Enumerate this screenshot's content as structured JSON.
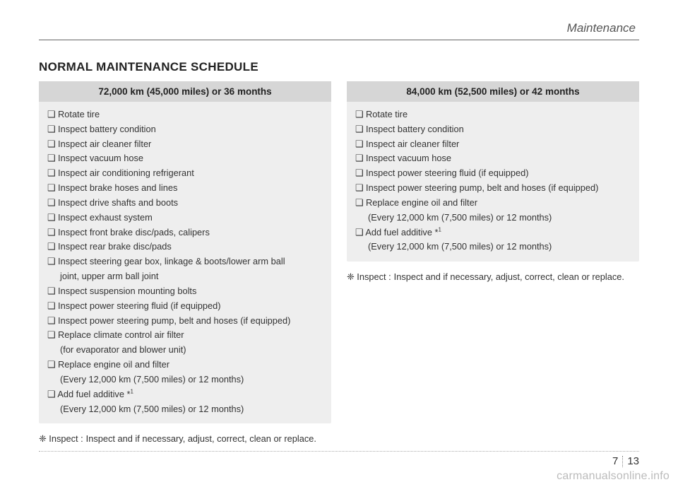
{
  "header": {
    "section": "Maintenance"
  },
  "title": "NORMAL MAINTENANCE SCHEDULE",
  "left": {
    "header": "72,000 km (45,000 miles) or 36 months",
    "items": [
      "❑ Rotate tire",
      "❑ Inspect battery condition",
      "❑ Inspect air cleaner filter",
      "❑ Inspect vacuum hose",
      "❑ Inspect air conditioning refrigerant",
      "❑ Inspect brake hoses and lines",
      "❑ Inspect drive shafts and boots",
      "❑ Inspect exhaust system",
      "❑ Inspect front brake disc/pads, calipers",
      "❑ Inspect rear brake disc/pads",
      "❑ Inspect steering gear box, linkage & boots/lower arm ball",
      "    joint, upper arm ball joint",
      "❑ Inspect suspension mounting bolts",
      "❑ Inspect power steering fluid (if equipped)",
      "❑ Inspect power steering pump, belt and hoses (if equipped)",
      "❑ Replace climate control air filter",
      "    (for evaporator and blower unit)",
      "❑ Replace engine oil and filter",
      "    (Every 12,000 km (7,500 miles) or 12 months)",
      "❑ Add fuel additive *",
      "    (Every 12,000 km (7,500 miles) or 12 months)"
    ],
    "note_label": "❈ Inspect :",
    "note_text": "Inspect and if necessary, adjust, correct, clean or replace."
  },
  "right": {
    "header": "84,000 km (52,500 miles) or 42 months",
    "items": [
      "❑ Rotate tire",
      "❑ Inspect battery condition",
      "❑ Inspect air cleaner filter",
      "❑ Inspect vacuum hose",
      "❑ Inspect power steering fluid (if equipped)",
      "❑ Inspect power steering pump, belt and hoses (if equipped)",
      "❑ Replace engine oil and filter",
      "    (Every 12,000 km (7,500 miles) or 12 months)",
      "❑ Add fuel additive *",
      "    (Every 12,000 km (7,500 miles) or 12 months)"
    ],
    "note_label": "❈ Inspect :",
    "note_text": "Inspect and if necessary, adjust, correct, clean or replace."
  },
  "page_number": {
    "chapter": "7",
    "page": "13"
  },
  "watermark": "carmanualsonline.info",
  "colors": {
    "box_bg": "#eeeeee",
    "box_header_bg": "#d6d6d6",
    "text": "#333333",
    "rule": "#666666"
  }
}
